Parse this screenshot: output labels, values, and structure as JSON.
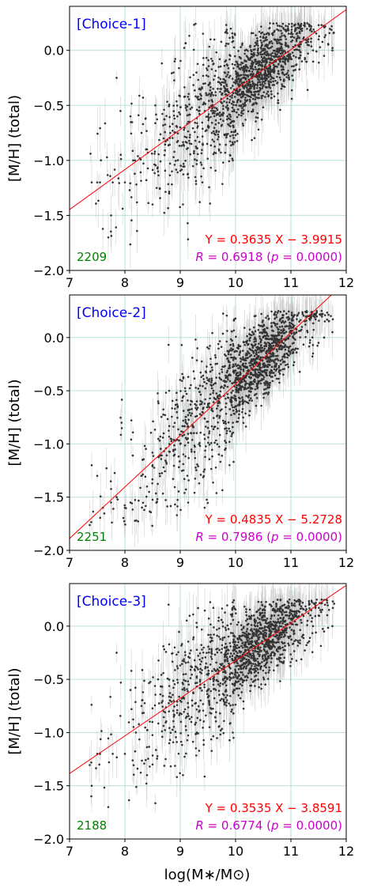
{
  "figure": {
    "xlabel": "log(M∗/M⊙)",
    "colors": {
      "grid": "#b8e0d6",
      "points": "#333333",
      "errorbars": "#bdbdbd",
      "fitline": "#ff0000",
      "choice_label": "#0000ff",
      "count_label": "#008000",
      "corr_label": "#cc00cc"
    }
  },
  "chart_data": [
    {
      "type": "scatter",
      "title": "",
      "choice_label": "[Choice-1]",
      "count_label": "2209",
      "fit_label": "Y = 0.3635 X − 3.9915",
      "corr_text": {
        "r_symbol": "R",
        "r_value": " = 0.6918 (",
        "p_symbol": "p",
        "p_value": " = 0.0000)"
      },
      "ylabel": "[M/H] (total)",
      "xlabel": "",
      "xlim": [
        7,
        12
      ],
      "ylim": [
        -2.0,
        0.4
      ],
      "xticks": [
        "7",
        "8",
        "9",
        "10",
        "11",
        "12"
      ],
      "yticks": [
        "0.0",
        "−0.5",
        "−1.0",
        "−1.5",
        "−2.0"
      ],
      "grid": true,
      "fit": {
        "slope": 0.3635,
        "intercept": -3.9915
      },
      "points": {
        "n": 2209,
        "x": [
          7.4,
          7.5,
          7.55,
          7.7,
          7.75,
          7.78,
          7.85,
          8.0,
          8.1,
          8.15,
          8.3,
          8.4,
          8.5,
          8.55,
          8.6,
          8.7,
          8.8,
          8.85,
          8.9,
          9.0,
          9.05,
          9.1,
          9.2,
          9.3,
          9.4,
          9.45,
          9.5,
          9.6,
          9.7,
          9.75,
          9.8,
          9.85,
          9.9,
          9.95,
          10.0,
          10.05,
          10.1,
          10.15,
          10.2,
          10.25,
          10.3,
          10.35,
          10.4,
          10.45,
          10.5,
          10.55,
          10.6,
          10.65,
          10.7,
          10.75,
          10.8,
          10.85,
          10.9,
          10.95,
          11.0,
          11.05,
          11.1,
          11.15,
          11.2,
          11.3,
          11.4,
          11.5,
          11.6,
          11.75
        ],
        "y": [
          -1.2,
          -1.2,
          -1.2,
          -1.7,
          -1.5,
          -1.2,
          -0.25,
          -1.2,
          -0.6,
          -1.0,
          -0.75,
          -0.9,
          -1.4,
          -0.5,
          -1.1,
          -0.8,
          -1.3,
          -1.1,
          -0.1,
          -0.7,
          -1.4,
          -0.5,
          -0.85,
          -1.0,
          -1.2,
          -0.3,
          -0.6,
          -0.55,
          -0.9,
          -0.4,
          -0.2,
          -0.6,
          -0.45,
          -1.0,
          -0.3,
          -0.15,
          -0.5,
          -0.25,
          -0.05,
          -0.35,
          -0.1,
          -0.4,
          0.0,
          -0.2,
          -0.1,
          0.05,
          -0.3,
          -0.05,
          0.1,
          -0.15,
          0.0,
          -0.2,
          0.05,
          -0.1,
          0.15,
          -0.05,
          0.1,
          0.0,
          -0.1,
          0.05,
          0.0,
          0.1,
          -0.05,
          0.0
        ]
      }
    },
    {
      "type": "scatter",
      "title": "",
      "choice_label": "[Choice-2]",
      "count_label": "2251",
      "fit_label": "Y = 0.4835 X − 5.2728",
      "corr_text": {
        "r_symbol": "R",
        "r_value": " = 0.7986 (",
        "p_symbol": "p",
        "p_value": " = 0.0000)"
      },
      "ylabel": "[M/H] (total)",
      "xlabel": "",
      "xlim": [
        7,
        12
      ],
      "ylim": [
        -2.0,
        0.4
      ],
      "xticks": [
        "7",
        "8",
        "9",
        "10",
        "11",
        "12"
      ],
      "yticks": [
        "0.0",
        "−0.5",
        "−1.0",
        "−1.5",
        "−2.0"
      ],
      "grid": true,
      "fit": {
        "slope": 0.4835,
        "intercept": -5.2728
      },
      "points": {
        "n": 2251,
        "x": [
          7.4,
          7.5,
          7.6,
          7.75,
          7.85,
          8.0,
          8.1,
          8.3,
          8.4,
          8.5,
          8.6,
          8.7,
          8.8,
          8.9,
          9.0,
          9.1,
          9.2,
          9.3,
          9.4,
          9.5,
          9.55,
          9.6,
          9.7,
          9.75,
          9.8,
          9.85,
          9.9,
          9.95,
          10.0,
          10.05,
          10.1,
          10.15,
          10.2,
          10.25,
          10.3,
          10.35,
          10.4,
          10.45,
          10.5,
          10.55,
          10.6,
          10.65,
          10.7,
          10.75,
          10.8,
          10.85,
          10.9,
          10.95,
          11.0,
          11.05,
          11.1,
          11.15,
          11.2,
          11.3,
          11.4,
          11.5,
          11.6,
          11.75
        ],
        "y": [
          -1.2,
          -1.3,
          -1.6,
          -1.55,
          -1.5,
          -1.6,
          -1.55,
          -1.3,
          -1.4,
          -1.2,
          -0.6,
          -0.9,
          -0.5,
          -1.1,
          -1.0,
          -0.8,
          -0.9,
          -0.6,
          -0.7,
          -0.4,
          -0.2,
          -0.5,
          -0.6,
          -0.3,
          -0.45,
          -0.2,
          -0.35,
          -0.5,
          -0.25,
          -0.1,
          -0.3,
          -0.2,
          -0.05,
          -0.15,
          -0.25,
          0.0,
          -0.1,
          -0.2,
          0.0,
          0.05,
          -0.1,
          0.1,
          0.0,
          -0.05,
          0.1,
          0.05,
          0.15,
          0.0,
          0.1,
          0.2,
          0.05,
          0.15,
          0.1,
          0.05,
          -0.15,
          -0.05,
          0.0,
          0.05
        ]
      }
    },
    {
      "type": "scatter",
      "title": "",
      "choice_label": "[Choice-3]",
      "count_label": "2188",
      "fit_label": "Y = 0.3535 X − 3.8591",
      "corr_text": {
        "r_symbol": "R",
        "r_value": " = 0.6774 (",
        "p_symbol": "p",
        "p_value": " = 0.0000)"
      },
      "ylabel": "[M/H] (total)",
      "xlabel": "log(M∗/M⊙)",
      "xlim": [
        7,
        12
      ],
      "ylim": [
        -2.0,
        0.4
      ],
      "xticks": [
        "7",
        "8",
        "9",
        "10",
        "11",
        "12"
      ],
      "yticks": [
        "0.0",
        "−0.5",
        "−1.0",
        "−1.5",
        "−2.0"
      ],
      "grid": true,
      "fit": {
        "slope": 0.3535,
        "intercept": -3.8591
      },
      "points": {
        "n": 2188,
        "x": [
          7.4,
          7.5,
          7.55,
          7.7,
          7.78,
          7.85,
          8.0,
          8.1,
          8.2,
          8.3,
          8.4,
          8.5,
          8.6,
          8.7,
          8.8,
          8.9,
          9.0,
          9.05,
          9.1,
          9.2,
          9.3,
          9.4,
          9.5,
          9.6,
          9.7,
          9.75,
          9.8,
          9.85,
          9.9,
          9.95,
          10.0,
          10.05,
          10.1,
          10.15,
          10.2,
          10.25,
          10.3,
          10.35,
          10.4,
          10.45,
          10.5,
          10.55,
          10.6,
          10.65,
          10.7,
          10.75,
          10.8,
          10.85,
          10.9,
          10.95,
          11.0,
          11.05,
          11.1,
          11.2,
          11.3,
          11.4,
          11.5,
          11.6,
          11.75
        ],
        "y": [
          -1.5,
          -1.2,
          -1.2,
          -1.7,
          -1.2,
          -0.25,
          -1.2,
          -0.6,
          -1.0,
          -0.75,
          -1.4,
          -1.3,
          -0.5,
          -0.8,
          -1.1,
          -0.2,
          -0.7,
          -1.4,
          -0.45,
          -0.9,
          -1.0,
          -0.3,
          -0.6,
          -0.55,
          -0.1,
          -0.4,
          -0.2,
          -0.65,
          -0.45,
          -1.0,
          -0.3,
          -0.15,
          -0.5,
          -0.25,
          -0.05,
          -0.35,
          -0.1,
          -0.4,
          0.0,
          -0.2,
          -0.1,
          0.05,
          -0.3,
          -0.05,
          0.1,
          -0.15,
          0.0,
          -0.2,
          0.05,
          -0.1,
          0.15,
          -0.05,
          0.1,
          -0.1,
          0.05,
          0.0,
          0.1,
          -0.05,
          0.0
        ]
      }
    }
  ]
}
